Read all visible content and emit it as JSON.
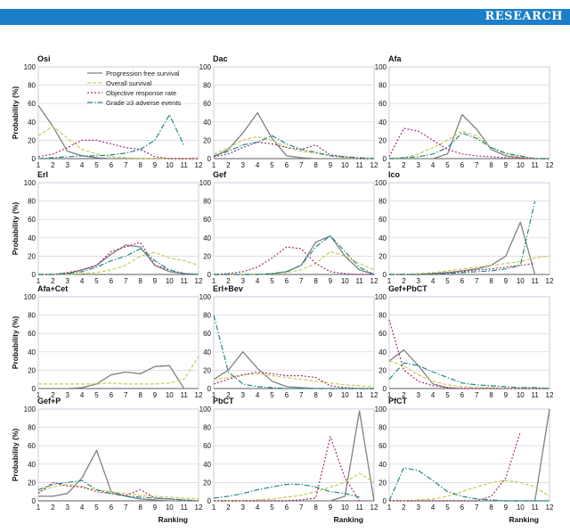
{
  "header": {
    "title": "RESEARCH",
    "accent_color": "#1a7fc8"
  },
  "chart_data": {
    "type": "line",
    "ylabel": "Probability (%)",
    "xlabel": "Ranking",
    "x": [
      1,
      2,
      3,
      4,
      5,
      6,
      7,
      8,
      9,
      10,
      11,
      12
    ],
    "ylim": [
      0,
      100
    ],
    "yticks": [
      0,
      20,
      40,
      60,
      80,
      100
    ],
    "legend": {
      "location": "top-left panel",
      "entries": [
        {
          "key": "pfs",
          "name": "Progression free survival",
          "color": "#808080",
          "dash": ""
        },
        {
          "key": "os",
          "name": "Overall survival",
          "color": "#c8cc52",
          "dash": "4,2"
        },
        {
          "key": "orr",
          "name": "Objective response rate",
          "color": "#a0307a",
          "dash": "2,2"
        },
        {
          "key": "ae",
          "name": "Grade ≥3 adverse events",
          "color": "#1f8a84",
          "dash": "6,2,1.5,2"
        }
      ]
    },
    "panels": [
      {
        "title": "Osi",
        "series": {
          "pfs": [
            58,
            35,
            8,
            3,
            1,
            0,
            0,
            0,
            0,
            0,
            0,
            0
          ],
          "os": [
            25,
            35,
            22,
            10,
            5,
            2,
            1,
            0,
            0,
            0,
            0,
            0
          ],
          "orr": [
            2,
            5,
            12,
            20,
            20,
            16,
            12,
            10,
            2,
            0,
            0,
            0
          ],
          "ae": [
            0,
            1,
            2,
            3,
            3,
            4,
            6,
            10,
            20,
            48,
            14,
            null
          ]
        }
      },
      {
        "title": "Dac",
        "series": {
          "pfs": [
            2,
            10,
            28,
            50,
            22,
            3,
            1,
            0,
            0,
            0,
            0,
            0
          ],
          "os": [
            5,
            12,
            20,
            24,
            20,
            12,
            8,
            6,
            3,
            1,
            0,
            0
          ],
          "orr": [
            2,
            5,
            12,
            18,
            16,
            12,
            10,
            15,
            4,
            2,
            0,
            0
          ],
          "ae": [
            3,
            8,
            15,
            18,
            25,
            16,
            10,
            7,
            3,
            2,
            1,
            0
          ]
        }
      },
      {
        "title": "Afa",
        "series": {
          "pfs": [
            0,
            0,
            0,
            0,
            5,
            48,
            32,
            10,
            3,
            1,
            0,
            0
          ],
          "os": [
            0,
            1,
            5,
            12,
            20,
            30,
            25,
            12,
            5,
            2,
            0,
            0
          ],
          "orr": [
            2,
            33,
            30,
            20,
            10,
            5,
            3,
            2,
            1,
            0,
            0,
            0
          ],
          "ae": [
            0,
            1,
            2,
            5,
            12,
            28,
            22,
            12,
            6,
            3,
            0,
            0
          ]
        }
      },
      {
        "title": "Erl",
        "series": {
          "pfs": [
            0,
            0,
            1,
            5,
            10,
            22,
            32,
            30,
            10,
            3,
            1,
            0
          ],
          "os": [
            0,
            0,
            0,
            1,
            2,
            5,
            10,
            20,
            24,
            18,
            15,
            10
          ],
          "orr": [
            0,
            0,
            2,
            5,
            10,
            25,
            30,
            35,
            10,
            5,
            1,
            0
          ],
          "ae": [
            0,
            0,
            1,
            3,
            8,
            15,
            20,
            28,
            15,
            5,
            1,
            0
          ]
        }
      },
      {
        "title": "Gef",
        "series": {
          "pfs": [
            0,
            0,
            0,
            0,
            1,
            3,
            10,
            35,
            42,
            20,
            5,
            0
          ],
          "os": [
            0,
            0,
            0,
            0,
            1,
            2,
            5,
            12,
            25,
            20,
            12,
            5
          ],
          "orr": [
            0,
            1,
            3,
            8,
            18,
            30,
            28,
            12,
            3,
            1,
            0,
            0
          ],
          "ae": [
            0,
            0,
            0,
            0,
            1,
            3,
            10,
            30,
            42,
            25,
            8,
            0
          ]
        }
      },
      {
        "title": "Ico",
        "series": {
          "pfs": [
            0,
            0,
            0,
            1,
            2,
            4,
            6,
            10,
            20,
            57,
            0,
            0
          ],
          "os": [
            0,
            0,
            1,
            2,
            4,
            6,
            8,
            10,
            12,
            14,
            18,
            20
          ],
          "orr": [
            0,
            0,
            0,
            1,
            2,
            3,
            5,
            6,
            8,
            10,
            12,
            null
          ],
          "ae": [
            0,
            0,
            0,
            0,
            1,
            2,
            3,
            4,
            6,
            10,
            80,
            null
          ]
        }
      },
      {
        "title": "Afa+Cet",
        "series": {
          "pfs": [
            0,
            0,
            0,
            1,
            5,
            15,
            18,
            16,
            24,
            25,
            0,
            0
          ],
          "os": [
            5,
            5,
            5,
            5,
            5,
            6,
            5,
            5,
            5,
            6,
            10,
            35
          ],
          "orr": [
            null,
            null,
            null,
            null,
            null,
            null,
            null,
            null,
            null,
            null,
            null,
            null
          ],
          "ae": [
            null,
            null,
            null,
            null,
            null,
            null,
            null,
            null,
            null,
            null,
            null,
            null
          ]
        }
      },
      {
        "title": "Erl+Bev",
        "series": {
          "pfs": [
            10,
            20,
            40,
            22,
            8,
            2,
            1,
            0,
            0,
            0,
            0,
            0
          ],
          "os": [
            10,
            12,
            15,
            16,
            14,
            12,
            10,
            8,
            6,
            4,
            3,
            2
          ],
          "orr": [
            5,
            10,
            15,
            18,
            16,
            14,
            14,
            12,
            3,
            1,
            0,
            0
          ],
          "ae": [
            80,
            18,
            5,
            2,
            1,
            0,
            0,
            0,
            0,
            0,
            0,
            0
          ]
        }
      },
      {
        "title": "Gef+PbCT",
        "series": {
          "pfs": [
            30,
            42,
            25,
            5,
            1,
            0,
            0,
            0,
            0,
            0,
            0,
            0
          ],
          "os": [
            30,
            25,
            15,
            8,
            4,
            2,
            1,
            1,
            0,
            0,
            0,
            0
          ],
          "orr": [
            75,
            20,
            8,
            3,
            1,
            0,
            0,
            0,
            0,
            0,
            0,
            0
          ],
          "ae": [
            10,
            28,
            25,
            18,
            12,
            6,
            4,
            3,
            2,
            1,
            1,
            0
          ]
        }
      },
      {
        "title": "Gef+P",
        "series": {
          "pfs": [
            5,
            5,
            8,
            25,
            55,
            10,
            5,
            2,
            1,
            0,
            0,
            0
          ],
          "os": [
            10,
            15,
            18,
            15,
            12,
            10,
            8,
            6,
            5,
            4,
            3,
            2
          ],
          "orr": [
            8,
            20,
            16,
            15,
            10,
            8,
            6,
            12,
            3,
            2,
            1,
            0
          ],
          "ae": [
            12,
            18,
            20,
            22,
            12,
            8,
            5,
            4,
            3,
            2,
            1,
            0
          ]
        }
      },
      {
        "title": "PbCT",
        "series": {
          "pfs": [
            0,
            0,
            0,
            0,
            0,
            0,
            0,
            0,
            0,
            5,
            98,
            0
          ],
          "os": [
            0,
            0,
            0,
            1,
            2,
            4,
            6,
            10,
            15,
            20,
            30,
            20
          ],
          "orr": [
            0,
            0,
            0,
            0,
            0,
            0,
            1,
            3,
            70,
            25,
            0,
            null
          ],
          "ae": [
            3,
            5,
            8,
            12,
            15,
            18,
            18,
            15,
            10,
            8,
            4,
            null
          ]
        }
      },
      {
        "title": "PfCT",
        "series": {
          "pfs": [
            0,
            0,
            0,
            0,
            0,
            0,
            0,
            0,
            0,
            0,
            0,
            100
          ],
          "os": [
            0,
            0,
            1,
            2,
            5,
            10,
            15,
            20,
            22,
            20,
            15,
            5
          ],
          "orr": [
            0,
            0,
            0,
            0,
            0,
            0,
            0,
            5,
            25,
            75,
            null,
            null
          ],
          "ae": [
            0,
            36,
            33,
            22,
            10,
            5,
            2,
            1,
            0,
            0,
            0,
            0
          ]
        }
      }
    ]
  }
}
